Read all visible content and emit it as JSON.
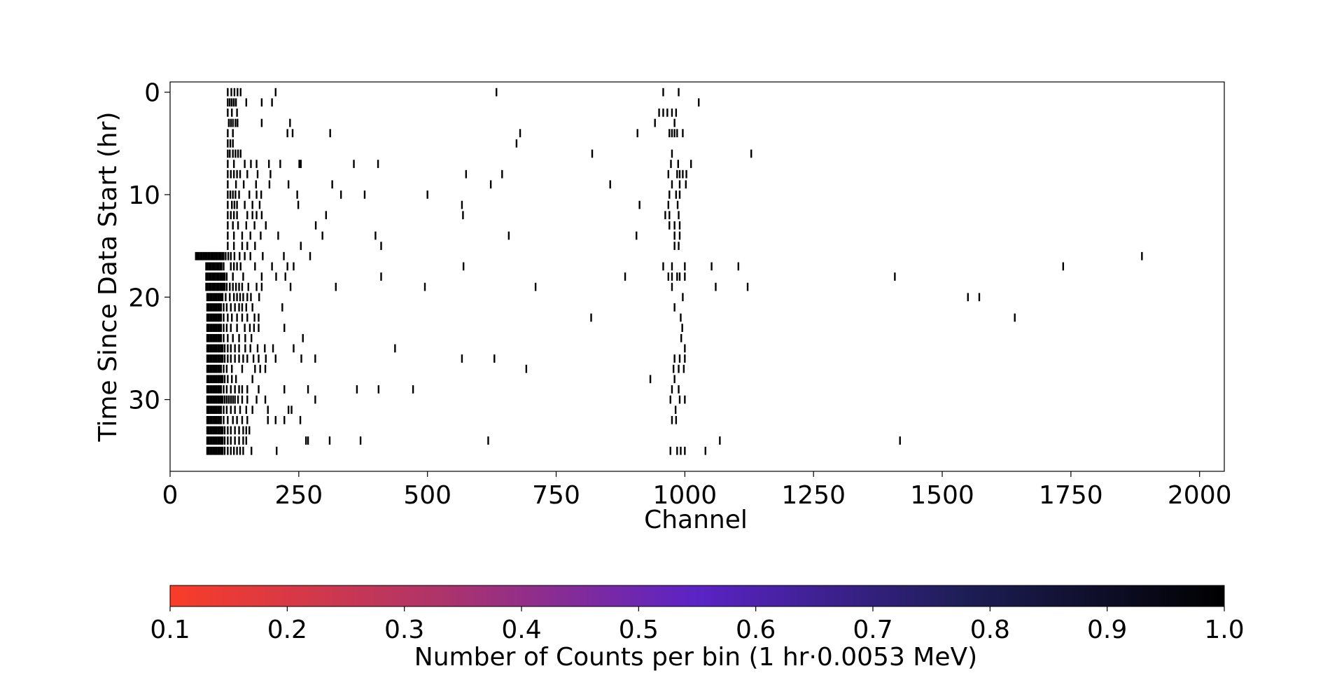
{
  "chart_data": {
    "type": "heatmap",
    "title": "",
    "xlabel": "Channel",
    "ylabel": "Time Since Data Start (hr)",
    "xlim": [
      0,
      2048
    ],
    "ylim": [
      -1,
      37
    ],
    "y_inverted": true,
    "grid": false,
    "x_ticks": [
      0,
      250,
      500,
      750,
      1000,
      1250,
      1500,
      1750,
      2000
    ],
    "x_tick_labels": [
      "0",
      "250",
      "500",
      "750",
      "1000",
      "1250",
      "1500",
      "1750",
      "2000"
    ],
    "y_ticks": [
      0,
      10,
      20,
      30
    ],
    "y_tick_labels": [
      "0",
      "10",
      "20",
      "30"
    ],
    "bin_width_hr": 1,
    "colorbar": {
      "label": "Number of Counts per bin (1 hr·0.0053 MeV)",
      "range": [
        0.1,
        1.0
      ],
      "ticks": [
        "0.1",
        "0.2",
        "0.3",
        "0.4",
        "0.5",
        "0.6",
        "0.7",
        "0.8",
        "0.9",
        "1.0"
      ],
      "colors": [
        "#fa3c28",
        "#b03468",
        "#5b23c6",
        "#1e1e58",
        "#000000"
      ]
    },
    "mark_color": "#000000",
    "rows": [
      {
        "hour": 0,
        "channels": [
          112,
          119,
          125,
          131,
          137,
          205,
          634,
          958,
          988
        ]
      },
      {
        "hour": 1,
        "channels": [
          112,
          116,
          120,
          124,
          128,
          148,
          178,
          198,
          1027
        ]
      },
      {
        "hour": 2,
        "channels": [
          112,
          120,
          130,
          950,
          958,
          966,
          975,
          983
        ]
      },
      {
        "hour": 3,
        "channels": [
          114,
          118,
          122,
          127,
          131,
          178,
          233,
          942,
          980
        ]
      },
      {
        "hour": 4,
        "channels": [
          112,
          122,
          228,
          238,
          311,
          680,
          908,
          970,
          975,
          980,
          985,
          996
        ]
      },
      {
        "hour": 5,
        "channels": [
          112,
          117,
          122,
          673
        ]
      },
      {
        "hour": 6,
        "channels": [
          112,
          116,
          122,
          127,
          132,
          137,
          820,
          975,
          1129
        ]
      },
      {
        "hour": 7,
        "channels": [
          112,
          124,
          145,
          157,
          168,
          192,
          214,
          251,
          254,
          357,
          404,
          973,
          987,
          1012
        ]
      },
      {
        "hour": 8,
        "channels": [
          112,
          118,
          124,
          130,
          136,
          150,
          170,
          195,
          575,
          645,
          968,
          985,
          990,
          996,
          1003
        ]
      },
      {
        "hour": 9,
        "channels": [
          112,
          128,
          143,
          167,
          193,
          230,
          315,
          623,
          855,
          975,
          990,
          1002
        ]
      },
      {
        "hour": 10,
        "channels": [
          112,
          117,
          122,
          127,
          134,
          154,
          168,
          177,
          247,
          332,
          378,
          500,
          970,
          983,
          990
        ]
      },
      {
        "hour": 11,
        "channels": [
          112,
          120,
          125,
          130,
          145,
          160,
          174,
          249,
          567,
          912,
          968,
          986
        ]
      },
      {
        "hour": 12,
        "channels": [
          112,
          118,
          124,
          130,
          150,
          160,
          168,
          178,
          303,
          569,
          962,
          970,
          988
        ]
      },
      {
        "hour": 13,
        "channels": [
          112,
          122,
          132,
          148,
          164,
          186,
          283,
          970,
          980,
          990
        ]
      },
      {
        "hour": 14,
        "channels": [
          112,
          124,
          140,
          156,
          176,
          210,
          296,
          399,
          658,
          906,
          980,
          990
        ]
      },
      {
        "hour": 15,
        "channels": [
          112,
          124,
          140,
          150,
          165,
          254,
          410,
          980,
          988
        ]
      },
      {
        "hour": 16,
        "channels": [
          50,
          53,
          56,
          59,
          62,
          65,
          68,
          71,
          74,
          77,
          80,
          83,
          86,
          89,
          92,
          95,
          98,
          101,
          104,
          108,
          113,
          118,
          125,
          135,
          145,
          156,
          180,
          221,
          272,
          1888
        ]
      },
      {
        "hour": 17,
        "channels": [
          70,
          73,
          76,
          79,
          82,
          85,
          88,
          91,
          94,
          97,
          100,
          104,
          118,
          124,
          130,
          137,
          165,
          198,
          228,
          240,
          570,
          958,
          975,
          1000,
          1052,
          1104,
          1735
        ]
      },
      {
        "hour": 18,
        "channels": [
          70,
          73,
          76,
          79,
          82,
          85,
          88,
          91,
          94,
          97,
          100,
          103,
          106,
          110,
          122,
          142,
          178,
          206,
          224,
          410,
          884,
          968,
          975,
          985,
          990,
          1000,
          1408
        ]
      },
      {
        "hour": 19,
        "channels": [
          70,
          73,
          76,
          79,
          82,
          85,
          88,
          91,
          94,
          97,
          100,
          103,
          106,
          110,
          116,
          122,
          128,
          134,
          140,
          152,
          168,
          178,
          234,
          322,
          495,
          710,
          975,
          1060,
          1122
        ]
      },
      {
        "hour": 20,
        "channels": [
          72,
          75,
          78,
          81,
          84,
          87,
          90,
          93,
          96,
          99,
          102,
          108,
          116,
          124,
          130,
          136,
          142,
          150,
          157,
          173,
          996,
          1550,
          1572
        ]
      },
      {
        "hour": 21,
        "channels": [
          72,
          75,
          78,
          81,
          84,
          87,
          90,
          93,
          96,
          99,
          104,
          110,
          118,
          126,
          134,
          140,
          148,
          160,
          218,
          980
        ]
      },
      {
        "hour": 22,
        "channels": [
          72,
          75,
          78,
          81,
          84,
          87,
          90,
          93,
          96,
          99,
          104,
          112,
          120,
          130,
          140,
          150,
          164,
          172,
          818,
          992,
          1641
        ]
      },
      {
        "hour": 23,
        "channels": [
          72,
          75,
          78,
          81,
          84,
          87,
          90,
          93,
          96,
          99,
          104,
          110,
          118,
          130,
          145,
          155,
          163,
          172,
          222,
          995
        ]
      },
      {
        "hour": 24,
        "channels": [
          72,
          75,
          78,
          81,
          84,
          87,
          90,
          93,
          96,
          99,
          104,
          112,
          122,
          134,
          146,
          158,
          258,
          993
        ]
      },
      {
        "hour": 25,
        "channels": [
          72,
          75,
          78,
          81,
          84,
          87,
          90,
          93,
          96,
          99,
          102,
          106,
          112,
          118,
          126,
          134,
          146,
          156,
          170,
          184,
          200,
          240,
          437,
          1000
        ]
      },
      {
        "hour": 26,
        "channels": [
          72,
          75,
          78,
          81,
          84,
          87,
          90,
          93,
          96,
          99,
          102,
          106,
          112,
          118,
          126,
          134,
          142,
          150,
          162,
          172,
          186,
          205,
          255,
          282,
          567,
          630,
          980,
          990,
          1000
        ]
      },
      {
        "hour": 27,
        "channels": [
          72,
          75,
          78,
          81,
          84,
          87,
          90,
          93,
          96,
          99,
          104,
          110,
          120,
          140,
          165,
          175,
          185,
          692,
          978,
          988,
          998
        ]
      },
      {
        "hour": 28,
        "channels": [
          72,
          75,
          78,
          81,
          84,
          87,
          90,
          93,
          96,
          99,
          102,
          106,
          112,
          120,
          128,
          160,
          933,
          980
        ]
      },
      {
        "hour": 29,
        "channels": [
          72,
          75,
          78,
          81,
          84,
          87,
          90,
          93,
          96,
          99,
          104,
          110,
          118,
          126,
          134,
          140,
          150,
          172,
          222,
          268,
          363,
          405,
          472,
          975,
          988
        ]
      },
      {
        "hour": 30,
        "channels": [
          72,
          75,
          78,
          81,
          84,
          87,
          90,
          93,
          96,
          99,
          102,
          106,
          110,
          114,
          118,
          122,
          126,
          132,
          140,
          150,
          168,
          185,
          282,
          972,
          990,
          1000
        ]
      },
      {
        "hour": 31,
        "channels": [
          72,
          75,
          78,
          81,
          84,
          87,
          90,
          93,
          96,
          99,
          104,
          110,
          118,
          126,
          136,
          148,
          160,
          190,
          230,
          236,
          982
        ]
      },
      {
        "hour": 32,
        "channels": [
          72,
          75,
          78,
          81,
          84,
          87,
          90,
          93,
          96,
          99,
          104,
          112,
          122,
          130,
          140,
          150,
          190,
          205,
          222,
          253,
          975,
          983
        ]
      },
      {
        "hour": 33,
        "channels": [
          72,
          75,
          78,
          81,
          84,
          87,
          90,
          93,
          96,
          99,
          102,
          106,
          112,
          118,
          126,
          134,
          142,
          148,
          154
        ]
      },
      {
        "hour": 34,
        "channels": [
          72,
          75,
          78,
          81,
          84,
          87,
          90,
          93,
          96,
          99,
          102,
          106,
          112,
          118,
          126,
          134,
          142,
          148,
          264,
          268,
          310,
          370,
          618,
          1068,
          1418
        ]
      },
      {
        "hour": 35,
        "channels": [
          72,
          75,
          78,
          81,
          84,
          87,
          90,
          93,
          96,
          99,
          102,
          106,
          112,
          118,
          124,
          130,
          136,
          142,
          158,
          207,
          972,
          985,
          992,
          1000,
          1040
        ]
      }
    ]
  }
}
